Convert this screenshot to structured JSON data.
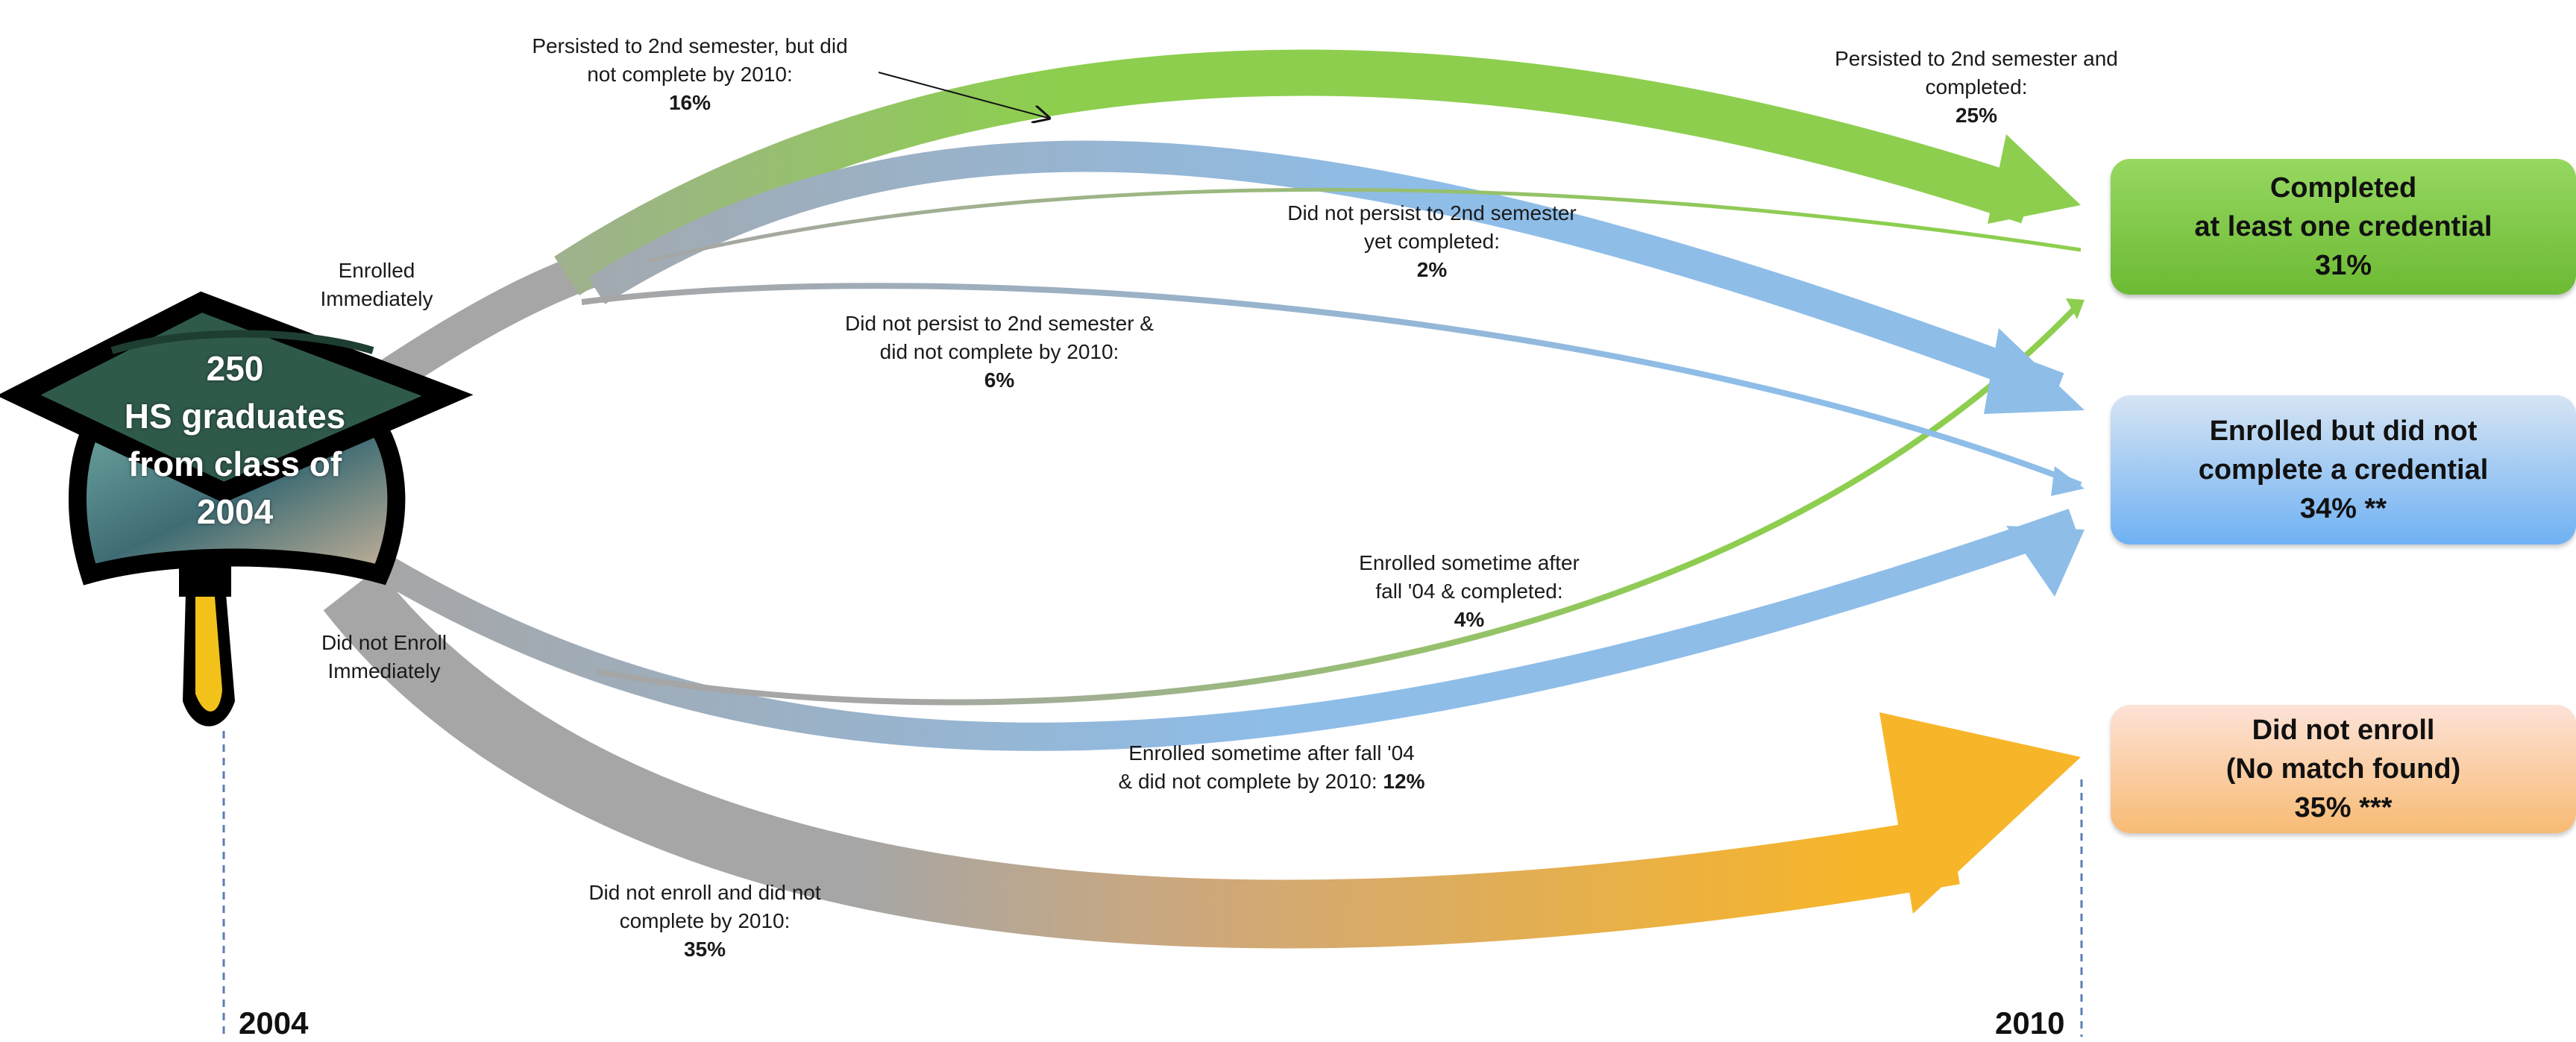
{
  "source_cohort": {
    "count": "250",
    "line2": "HS graduates",
    "line3": "from class of",
    "line4": "2004"
  },
  "branch_labels": {
    "enrolled_immediately": [
      "Enrolled",
      "Immediately"
    ],
    "did_not_enroll_immediately": [
      "Did not Enroll",
      "Immediately"
    ]
  },
  "flows": [
    {
      "id": "persist_completed",
      "text": [
        "Persisted to 2nd semester and",
        "completed:"
      ],
      "pct": "25%",
      "color": "#8dce4f"
    },
    {
      "id": "persist_not_completed",
      "text": [
        "Persisted to 2nd semester, but did",
        "not complete by 2010:"
      ],
      "pct": "16%",
      "color": "#8ebde8"
    },
    {
      "id": "no_persist_completed",
      "text": [
        "Did not persist to 2nd semester",
        "yet completed:"
      ],
      "pct": "2%",
      "color": "#8dce4f"
    },
    {
      "id": "no_persist_not_completed",
      "text": [
        "Did not persist to 2nd semester &",
        "did not complete by 2010:"
      ],
      "pct": "6%",
      "color": "#8ebde8"
    },
    {
      "id": "later_completed",
      "text": [
        "Enrolled  sometime after",
        "fall  '04 & completed:"
      ],
      "pct": "4%",
      "color": "#8dce4f"
    },
    {
      "id": "later_not_completed",
      "text": [
        "Enrolled sometime after fall '04",
        "& did not complete by 2010: "
      ],
      "pct": "12%",
      "color": "#8ebde8"
    },
    {
      "id": "not_enrolled",
      "text": [
        "Did not enroll and did not",
        "complete by 2010:"
      ],
      "pct": "35%",
      "color": "#f5a623"
    }
  ],
  "outcomes": [
    {
      "id": "completed",
      "lines": [
        "Completed",
        "at least one credential",
        "31%"
      ],
      "color_top": "#96d860",
      "color_bottom": "#6cba34"
    },
    {
      "id": "enrolled_no_credential",
      "lines": [
        "Enrolled but did not",
        "complete a  credential",
        "34% **"
      ],
      "color_top": "#cfe0f2",
      "color_bottom": "#6fb1f3"
    },
    {
      "id": "did_not_enroll",
      "lines": [
        "Did not enroll",
        "(No match found)",
        "35% ***"
      ],
      "color_top": "#fde2d7",
      "color_bottom": "#f7bb74"
    }
  ],
  "timeline": {
    "start_year": "2004",
    "end_year": "2010"
  },
  "colors": {
    "gray_flow": "#a6a6a6",
    "green_flow": "#8dce4f",
    "blue_flow": "#8ebde8",
    "orange_flow": "#f5a623"
  }
}
